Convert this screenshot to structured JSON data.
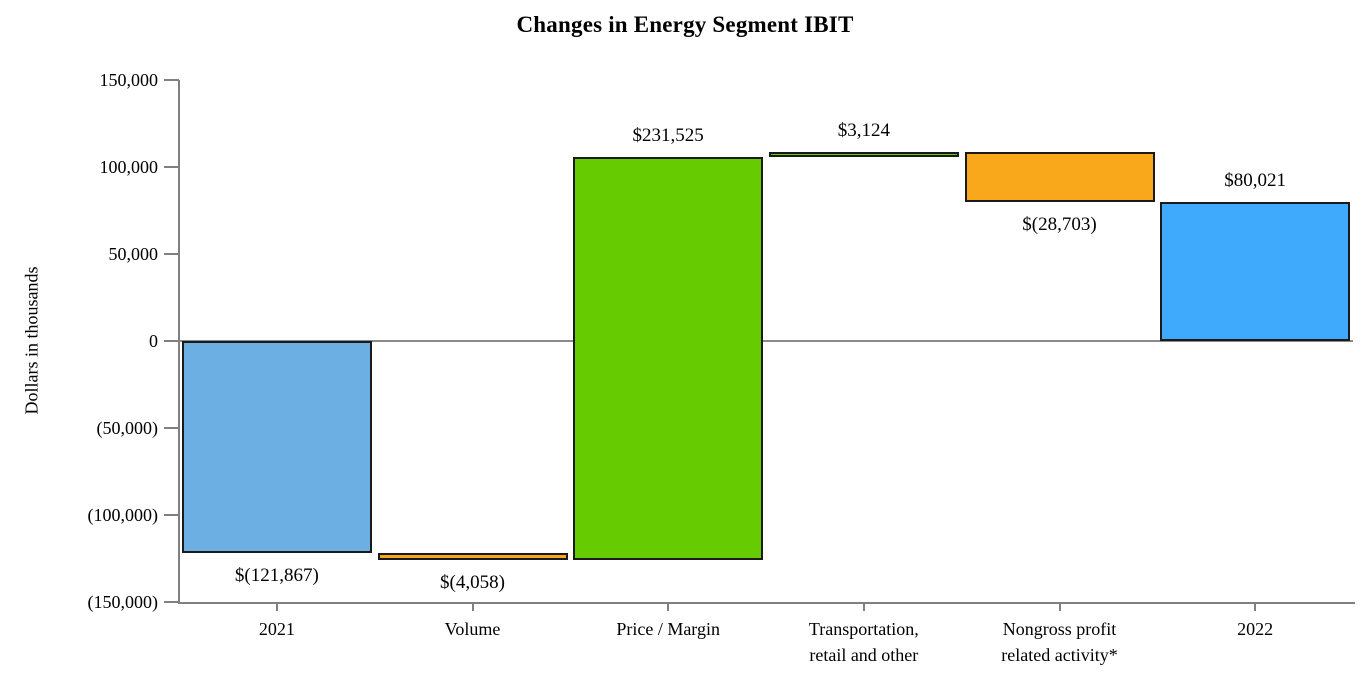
{
  "chart": {
    "title": "Changes in Energy Segment IBIT",
    "y_axis_label": "Dollars in thousands"
  },
  "chart_data": {
    "type": "bar",
    "subtype": "waterfall",
    "title": "Changes in Energy Segment IBIT",
    "xlabel": "",
    "ylabel": "Dollars in thousands",
    "ylim": [
      -150000,
      150000
    ],
    "grid": false,
    "legend": "none",
    "y_ticks": [
      {
        "value": 150000,
        "label": "150,000"
      },
      {
        "value": 100000,
        "label": "100,000"
      },
      {
        "value": 50000,
        "label": "50,000"
      },
      {
        "value": 0,
        "label": "0"
      },
      {
        "value": -50000,
        "label": "(50,000)"
      },
      {
        "value": -100000,
        "label": "(100,000)"
      },
      {
        "value": -150000,
        "label": "(150,000)"
      }
    ],
    "categories": [
      "2021",
      "Volume",
      "Price / Margin",
      "Transportation, retail and other",
      "Nongross profit related activity*",
      "2022"
    ],
    "bars": [
      {
        "category": "2021",
        "category_lines": [
          "2021"
        ],
        "value": -121867,
        "is_total": true,
        "label": "$(121,867)",
        "label_position": "below",
        "color_key": "blue_start"
      },
      {
        "category": "Volume",
        "category_lines": [
          "Volume"
        ],
        "value": -4058,
        "is_total": false,
        "label": "$(4,058)",
        "label_position": "below",
        "color_key": "orange"
      },
      {
        "category": "Price / Margin",
        "category_lines": [
          "Price / Margin"
        ],
        "value": 231525,
        "is_total": false,
        "label": "$231,525",
        "label_position": "above",
        "color_key": "green"
      },
      {
        "category": "Transportation, retail and other",
        "category_lines": [
          "Transportation,",
          "retail and other"
        ],
        "value": 3124,
        "is_total": false,
        "label": "$3,124",
        "label_position": "above",
        "color_key": "green"
      },
      {
        "category": "Nongross profit related activity*",
        "category_lines": [
          "Nongross profit",
          "related activity*"
        ],
        "value": -28703,
        "is_total": false,
        "label": "$(28,703)",
        "label_position": "below",
        "color_key": "orange"
      },
      {
        "category": "2022",
        "category_lines": [
          "2022"
        ],
        "value": 80021,
        "is_total": true,
        "label": "$80,021",
        "label_position": "above",
        "color_key": "blue_end"
      }
    ],
    "colors": {
      "blue_start": "#6CB0E3",
      "blue_end": "#3FA9FC",
      "green": "#66CB00",
      "orange": "#F9A71B",
      "axis": "#808080",
      "bar_border": "#1a1a1a"
    }
  }
}
